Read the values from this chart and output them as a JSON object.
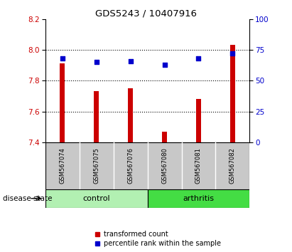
{
  "title": "GDS5243 / 10407916",
  "samples": [
    "GSM567074",
    "GSM567075",
    "GSM567076",
    "GSM567080",
    "GSM567081",
    "GSM567082"
  ],
  "groups": [
    "control",
    "control",
    "control",
    "arthritis",
    "arthritis",
    "arthritis"
  ],
  "transformed_count": [
    7.91,
    7.73,
    7.75,
    7.47,
    7.68,
    8.03
  ],
  "percentile_rank": [
    68,
    65,
    66,
    63,
    68,
    72
  ],
  "ylim_left": [
    7.4,
    8.2
  ],
  "ylim_right": [
    0,
    100
  ],
  "yticks_left": [
    7.4,
    7.6,
    7.8,
    8.0,
    8.2
  ],
  "yticks_right": [
    0,
    25,
    50,
    75,
    100
  ],
  "bar_color": "#cc0000",
  "scatter_color": "#0000cc",
  "control_color": "#b2f0b2",
  "arthritis_color": "#44dd44",
  "group_bg_gray": "#c8c8c8",
  "bar_width": 0.15,
  "legend_red_label": "transformed count",
  "legend_blue_label": "percentile rank within the sample",
  "disease_state_label": "disease state"
}
